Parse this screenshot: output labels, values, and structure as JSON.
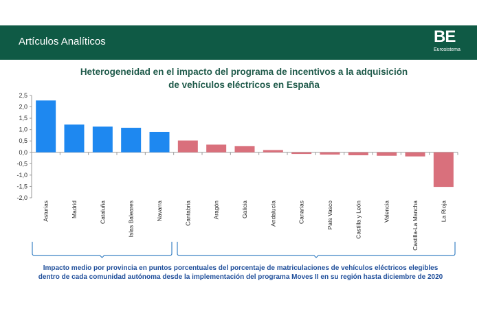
{
  "header": {
    "title": "Artículos Analíticos"
  },
  "logo": {
    "mark": "BE",
    "sub": "Eurosistema"
  },
  "colors": {
    "header_bg": "#0f5a45",
    "positive": "#1e88f0",
    "negative": "#d9707c",
    "title": "#1f5a4a",
    "footnote": "#1f4e9a",
    "bracket": "#3b82c4"
  },
  "chart_data": {
    "type": "bar",
    "title_lines": [
      "Heterogeneidad en el impacto del programa de incentivos a la adquisición",
      "de vehículos eléctricos en España"
    ],
    "categories": [
      "Asturias",
      "Madrid",
      "Cataluña",
      "Islas Baleares",
      "Navarra",
      "Cantabria",
      "Aragón",
      "Galicia",
      "Andalucía",
      "Canarias",
      "País Vasco",
      "Castilla y León",
      "Valencia",
      "Castilla-La Mancha",
      "La Rioja"
    ],
    "values": [
      2.28,
      1.22,
      1.13,
      1.08,
      0.9,
      0.52,
      0.34,
      0.27,
      0.1,
      -0.07,
      -0.1,
      -0.13,
      -0.15,
      -0.18,
      -1.52
    ],
    "ylim": [
      -2.0,
      2.5
    ],
    "yticks": [
      "2,5",
      "2,0",
      "1,5",
      "1,0",
      "0,5",
      "0,0",
      "-0,5",
      "-1,0",
      "-1,5",
      "-2,0"
    ],
    "grid": false,
    "footnote_lines": [
      "Impacto medio por provincia en puntos porcentuales del porcentaje de matriculaciones de vehículos eléctricos elegibles",
      "dentro de cada comunidad autónoma desde la implementación del programa Moves II en su región hasta diciembre de 2020"
    ]
  }
}
